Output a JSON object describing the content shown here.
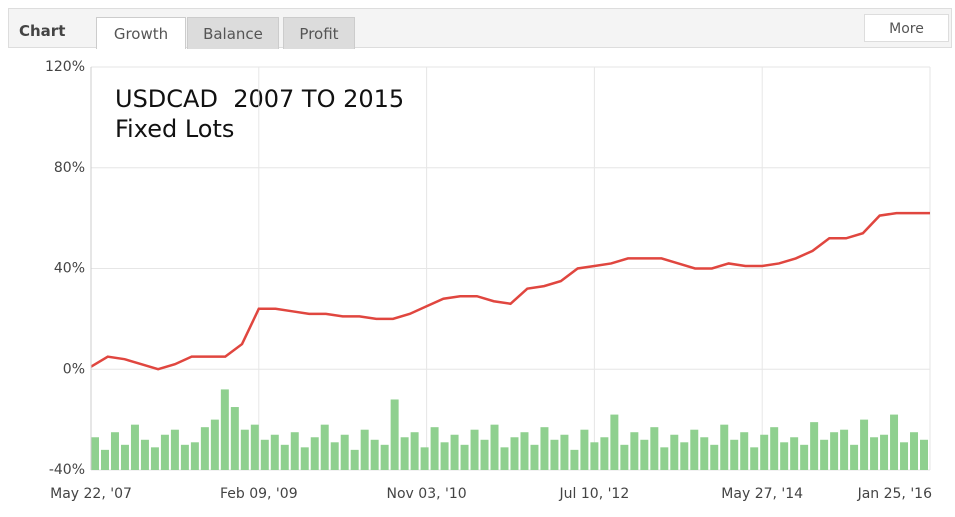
{
  "tabs": {
    "label": "Chart",
    "items": [
      "Growth",
      "Balance",
      "Profit"
    ],
    "more": "More"
  },
  "chart_data": {
    "type": "line",
    "annotations": [
      "USDCAD  2007 TO 2015",
      "Fixed Lots"
    ],
    "xlim": [
      0,
      50
    ],
    "xticks": [
      {
        "value": 0,
        "label": "May 22, '07"
      },
      {
        "value": 10,
        "label": "Feb 09, '09"
      },
      {
        "value": 20,
        "label": "Nov 03, '10"
      },
      {
        "value": 30,
        "label": "Jul 10, '12"
      },
      {
        "value": 40,
        "label": "May 27, '14"
      },
      {
        "value": 50,
        "label": "Jan 25, '16"
      }
    ],
    "ylim": [
      -40,
      120
    ],
    "yticks": [
      {
        "value": -40,
        "label": "-40%"
      },
      {
        "value": 0,
        "label": "0%"
      },
      {
        "value": 40,
        "label": "40%"
      },
      {
        "value": 80,
        "label": "80%"
      },
      {
        "value": 120,
        "label": "120%"
      }
    ],
    "grid": true,
    "series": [
      {
        "color": "#e0463f",
        "values": [
          1,
          5,
          4,
          2,
          0,
          2,
          5,
          5,
          5,
          10,
          24,
          24,
          23,
          22,
          22,
          21,
          21,
          20,
          20,
          22,
          25,
          28,
          29,
          29,
          27,
          26,
          32,
          33,
          35,
          40,
          41,
          42,
          44,
          44,
          44,
          42,
          40,
          40,
          42,
          41,
          41,
          42,
          44,
          47,
          52,
          52,
          54,
          61,
          62,
          62,
          62
        ]
      },
      {
        "type": "bar",
        "color": "#8fd08f",
        "values": [
          -27,
          -32,
          -25,
          -30,
          -22,
          -28,
          -31,
          -26,
          -24,
          -30,
          -29,
          -23,
          -20,
          -8,
          -15,
          -24,
          -22,
          -28,
          -26,
          -30,
          -25,
          -31,
          -27,
          -22,
          -29,
          -26,
          -32,
          -24,
          -28,
          -30,
          -12,
          -27,
          -25,
          -31,
          -23,
          -29,
          -26,
          -30,
          -24,
          -28,
          -22,
          -31,
          -27,
          -25,
          -30,
          -23,
          -28,
          -26,
          -32,
          -24,
          -29,
          -27,
          -18,
          -30,
          -25,
          -28,
          -23,
          -31,
          -26,
          -29,
          -24,
          -27,
          -30,
          -22,
          -28,
          -25,
          -31,
          -26,
          -23,
          -29,
          -27,
          -30,
          -21,
          -28,
          -25,
          -24,
          -30,
          -20,
          -27,
          -26,
          -18,
          -29,
          -25,
          -28
        ]
      }
    ]
  }
}
